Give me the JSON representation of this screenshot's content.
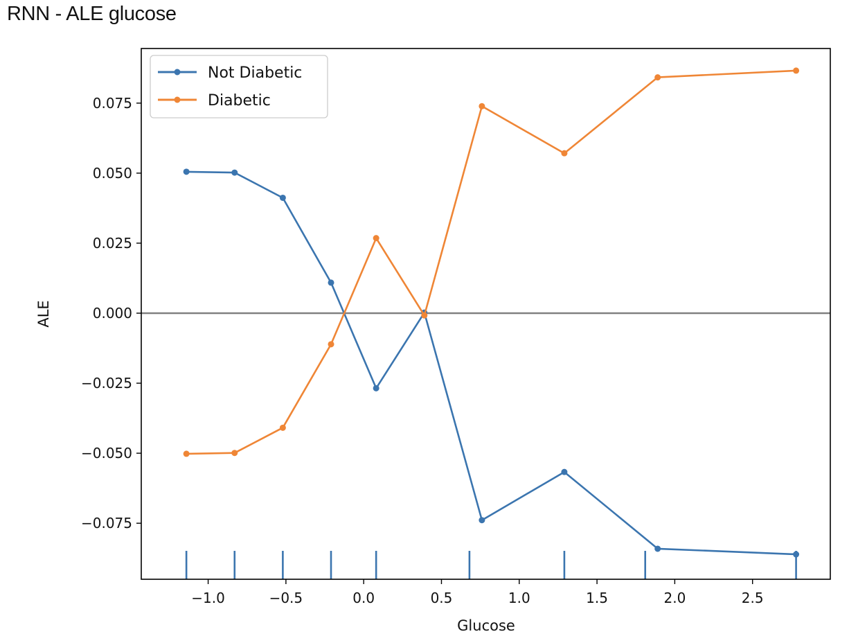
{
  "page": {
    "heading": "RNN - ALE glucose"
  },
  "chart_data": {
    "type": "line",
    "title": "",
    "xlabel": "Glucose",
    "ylabel": "ALE",
    "xlim": [
      -1.43,
      3.0
    ],
    "ylim": [
      -0.095,
      0.0945
    ],
    "x_ticks": [
      -1.0,
      -0.5,
      0.0,
      0.5,
      1.0,
      1.5,
      2.0,
      2.5
    ],
    "x_tick_labels": [
      "−1.0",
      "−0.5",
      "0.0",
      "0.5",
      "1.0",
      "1.5",
      "2.0",
      "2.5"
    ],
    "y_ticks": [
      0.075,
      0.05,
      0.025,
      0.0,
      -0.025,
      -0.05,
      -0.075
    ],
    "y_tick_labels": [
      "0.075",
      "0.050",
      "0.025",
      "0.000",
      "−0.025",
      "−0.050",
      "−0.075"
    ],
    "x": [
      -1.14,
      -0.83,
      -0.52,
      -0.21,
      0.08,
      0.39,
      0.76,
      1.29,
      1.89,
      2.78
    ],
    "series": [
      {
        "name": "Not Diabetic",
        "color": "#3b75af",
        "values": [
          0.0505,
          0.0502,
          0.0412,
          0.0109,
          -0.0268,
          0.0002,
          -0.0739,
          -0.0567,
          -0.0841,
          -0.0861
        ]
      },
      {
        "name": "Diabetic",
        "color": "#ef8636",
        "values": [
          -0.0502,
          -0.0499,
          -0.0409,
          -0.0111,
          0.0268,
          -0.0008,
          0.0739,
          0.0571,
          0.0842,
          0.0866
        ]
      }
    ],
    "reference_line": {
      "y": 0.0,
      "color": "#808080"
    },
    "rug_x": [
      -1.14,
      -0.83,
      -0.52,
      -0.21,
      0.08,
      0.68,
      1.29,
      1.81,
      2.78
    ],
    "rug_color": "#3b75af",
    "legend_position": "upper-left"
  }
}
